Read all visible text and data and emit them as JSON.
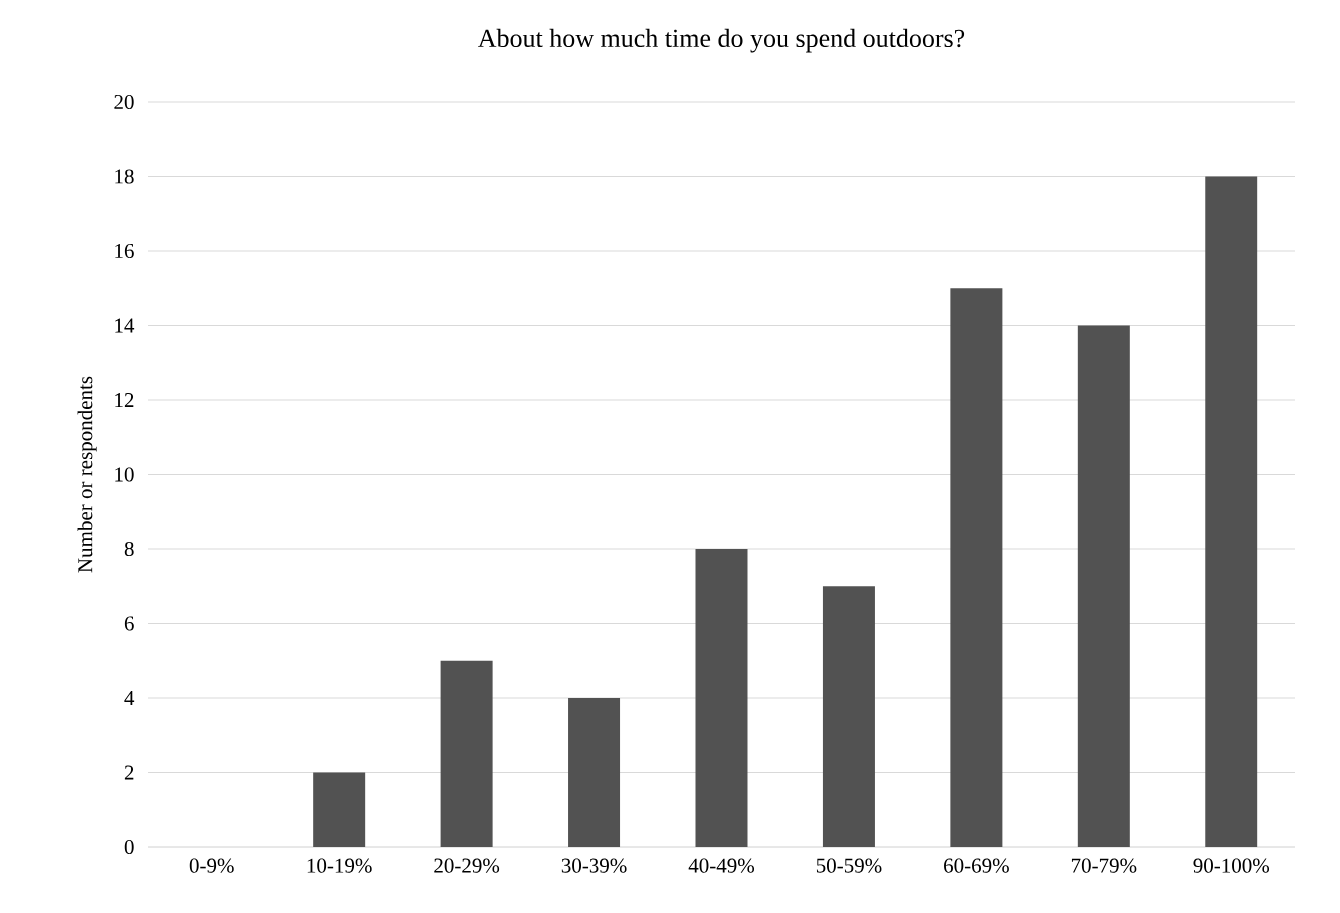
{
  "chart_data": {
    "type": "bar",
    "title": "About how much time do you spend outdoors?",
    "ylabel": "Number or respondents",
    "categories": [
      "0-9%",
      "10-19%",
      "20-29%",
      "30-39%",
      "40-49%",
      "50-59%",
      "60-69%",
      "70-79%",
      "90-100%"
    ],
    "values": [
      0,
      2,
      5,
      4,
      8,
      7,
      15,
      14,
      18
    ],
    "color": "#525252",
    "ylim": [
      0,
      20
    ],
    "yticks": [
      0,
      2,
      4,
      6,
      8,
      10,
      12,
      14,
      16,
      18,
      20
    ],
    "grid": "y"
  }
}
